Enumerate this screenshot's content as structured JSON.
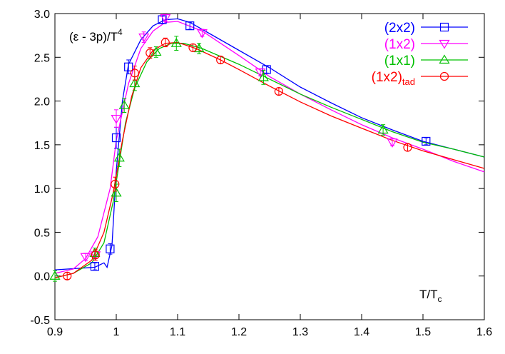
{
  "chart_data": {
    "type": "line",
    "title": "",
    "ylabel": "(ε - 3p)/T",
    "ylabel_sup": "4",
    "xlabel": "T/T",
    "xlabel_sub": "c",
    "xlim": [
      0.9,
      1.6
    ],
    "ylim": [
      -0.5,
      3.0
    ],
    "xticks": [
      "0.9",
      "1",
      "1.1",
      "1.2",
      "1.3",
      "1.4",
      "1.5",
      "1.6"
    ],
    "yticks": [
      "-0.5",
      "0.0",
      "0.5",
      "1.0",
      "1.5",
      "2.0",
      "2.5",
      "3.0"
    ],
    "grid": false,
    "legend_position": "top-right",
    "series": [
      {
        "name": "(2x2)",
        "name_sub": "",
        "color": "#0000ff",
        "marker": "square",
        "points": [
          [
            0.965,
            0.11
          ],
          [
            0.99,
            0.31
          ],
          [
            1.0,
            1.58
          ],
          [
            1.02,
            2.39
          ],
          [
            1.075,
            2.93
          ],
          [
            1.12,
            2.86
          ],
          [
            1.245,
            2.36
          ],
          [
            1.505,
            1.54
          ]
        ],
        "errors": [
          0.04,
          0.06,
          0.12,
          0.08,
          0.04,
          0.04,
          0.04,
          0.04
        ],
        "curve": [
          [
            0.9,
            0.07
          ],
          [
            0.965,
            0.1
          ],
          [
            0.98,
            0.15
          ],
          [
            0.985,
            0.1
          ],
          [
            0.993,
            0.35
          ],
          [
            1.0,
            1.2
          ],
          [
            1.01,
            2.0
          ],
          [
            1.02,
            2.42
          ],
          [
            1.04,
            2.7
          ],
          [
            1.06,
            2.86
          ],
          [
            1.08,
            2.93
          ],
          [
            1.1,
            2.94
          ],
          [
            1.12,
            2.9
          ],
          [
            1.15,
            2.78
          ],
          [
            1.2,
            2.58
          ],
          [
            1.25,
            2.38
          ],
          [
            1.3,
            2.16
          ],
          [
            1.35,
            1.98
          ],
          [
            1.4,
            1.81
          ],
          [
            1.45,
            1.67
          ],
          [
            1.5,
            1.54
          ],
          [
            1.55,
            1.45
          ],
          [
            1.6,
            1.36
          ]
        ]
      },
      {
        "name": "(1x2)",
        "name_sub": "",
        "color": "#ff00ff",
        "marker": "triangle-down",
        "points": [
          [
            0.95,
            0.22
          ],
          [
            0.966,
            0.24
          ],
          [
            1.0,
            1.8
          ],
          [
            1.045,
            2.73
          ],
          [
            1.08,
            2.95
          ],
          [
            1.14,
            2.78
          ],
          [
            1.235,
            2.33
          ],
          [
            1.45,
            1.53
          ]
        ],
        "errors": [
          0.04,
          0.04,
          0.1,
          0.06,
          0.04,
          0.04,
          0.04,
          0.04
        ],
        "curve": [
          [
            0.9,
            0.03
          ],
          [
            0.93,
            0.08
          ],
          [
            0.95,
            0.2
          ],
          [
            0.97,
            0.45
          ],
          [
            0.99,
            1.0
          ],
          [
            1.0,
            1.55
          ],
          [
            1.02,
            2.2
          ],
          [
            1.04,
            2.6
          ],
          [
            1.06,
            2.8
          ],
          [
            1.08,
            2.9
          ],
          [
            1.1,
            2.91
          ],
          [
            1.14,
            2.8
          ],
          [
            1.2,
            2.52
          ],
          [
            1.25,
            2.28
          ],
          [
            1.3,
            2.08
          ],
          [
            1.35,
            1.9
          ],
          [
            1.4,
            1.73
          ],
          [
            1.45,
            1.58
          ],
          [
            1.5,
            1.45
          ],
          [
            1.55,
            1.31
          ],
          [
            1.6,
            1.19
          ]
        ]
      },
      {
        "name": "(1x1)",
        "name_sub": "",
        "color": "#00c000",
        "marker": "triangle-up",
        "points": [
          [
            0.9,
            0.0
          ],
          [
            0.965,
            0.26
          ],
          [
            1.0,
            0.95
          ],
          [
            1.005,
            1.35
          ],
          [
            1.013,
            1.95
          ],
          [
            1.03,
            2.2
          ],
          [
            1.065,
            2.56
          ],
          [
            1.098,
            2.66
          ],
          [
            1.135,
            2.6
          ],
          [
            1.24,
            2.27
          ],
          [
            1.435,
            1.67
          ]
        ],
        "errors": [
          0.06,
          0.06,
          0.1,
          0.1,
          0.08,
          0.08,
          0.06,
          0.08,
          0.06,
          0.08,
          0.06
        ],
        "curve": [
          [
            0.9,
            -0.02
          ],
          [
            0.93,
            0.03
          ],
          [
            0.96,
            0.15
          ],
          [
            0.98,
            0.38
          ],
          [
            0.995,
            0.85
          ],
          [
            1.005,
            1.3
          ],
          [
            1.015,
            1.75
          ],
          [
            1.03,
            2.15
          ],
          [
            1.05,
            2.45
          ],
          [
            1.07,
            2.6
          ],
          [
            1.09,
            2.66
          ],
          [
            1.11,
            2.66
          ],
          [
            1.14,
            2.6
          ],
          [
            1.2,
            2.42
          ],
          [
            1.25,
            2.25
          ],
          [
            1.3,
            2.08
          ],
          [
            1.35,
            1.93
          ],
          [
            1.4,
            1.79
          ],
          [
            1.45,
            1.65
          ],
          [
            1.5,
            1.53
          ],
          [
            1.55,
            1.45
          ],
          [
            1.6,
            1.36
          ]
        ]
      },
      {
        "name": "(1x2)",
        "name_sub": "tad",
        "color": "#ff0000",
        "marker": "circle",
        "points": [
          [
            0.92,
            0.0
          ],
          [
            0.966,
            0.24
          ],
          [
            0.998,
            1.05
          ],
          [
            1.03,
            2.32
          ],
          [
            1.055,
            2.55
          ],
          [
            1.08,
            2.67
          ],
          [
            1.125,
            2.61
          ],
          [
            1.17,
            2.47
          ],
          [
            1.265,
            2.11
          ],
          [
            1.475,
            1.47
          ]
        ],
        "errors": [
          0.04,
          0.06,
          0.08,
          0.08,
          0.06,
          0.05,
          0.04,
          0.04,
          0.04,
          0.04
        ],
        "curve": [
          [
            0.9,
            -0.02
          ],
          [
            0.93,
            0.03
          ],
          [
            0.96,
            0.18
          ],
          [
            0.98,
            0.5
          ],
          [
            0.995,
            0.95
          ],
          [
            1.01,
            1.55
          ],
          [
            1.025,
            2.05
          ],
          [
            1.04,
            2.38
          ],
          [
            1.06,
            2.58
          ],
          [
            1.08,
            2.66
          ],
          [
            1.1,
            2.67
          ],
          [
            1.13,
            2.6
          ],
          [
            1.17,
            2.47
          ],
          [
            1.2,
            2.36
          ],
          [
            1.25,
            2.17
          ],
          [
            1.3,
            1.99
          ],
          [
            1.35,
            1.83
          ],
          [
            1.4,
            1.69
          ],
          [
            1.45,
            1.55
          ],
          [
            1.5,
            1.43
          ],
          [
            1.55,
            1.33
          ],
          [
            1.6,
            1.23
          ]
        ]
      }
    ]
  }
}
